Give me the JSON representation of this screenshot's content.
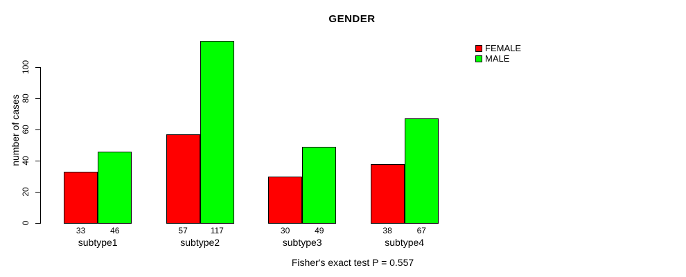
{
  "title": "GENDER",
  "y_axis": {
    "label": "number of cases",
    "ticks": [
      0,
      20,
      40,
      60,
      80,
      100
    ]
  },
  "legend": {
    "items": [
      {
        "label": "FEMALE",
        "color": "#ff0000"
      },
      {
        "label": "MALE",
        "color": "#00ff00"
      }
    ]
  },
  "footer_note": "Fisher's exact test P = 0.557",
  "colors": {
    "female": "#ff0000",
    "male": "#00ff00",
    "axis": "#000000",
    "background": "#ffffff"
  },
  "chart_data": {
    "type": "bar",
    "title": "GENDER",
    "categories": [
      "subtype1",
      "subtype2",
      "subtype3",
      "subtype4"
    ],
    "series": [
      {
        "name": "FEMALE",
        "color": "#ff0000",
        "values": [
          33,
          57,
          30,
          38
        ]
      },
      {
        "name": "MALE",
        "color": "#00ff00",
        "values": [
          46,
          117,
          49,
          67
        ]
      }
    ],
    "bar_value_labels": [
      [
        "33",
        "46"
      ],
      [
        "57",
        "117"
      ],
      [
        "30",
        "49"
      ],
      [
        "38",
        "67"
      ]
    ],
    "xlabel": "",
    "ylabel": "number of cases",
    "ylim": [
      0,
      100
    ],
    "yticks": [
      0,
      20,
      40,
      60,
      80,
      100
    ],
    "grid": false,
    "legend_position": "top-right",
    "annotation": "Fisher's exact test P = 0.557"
  }
}
